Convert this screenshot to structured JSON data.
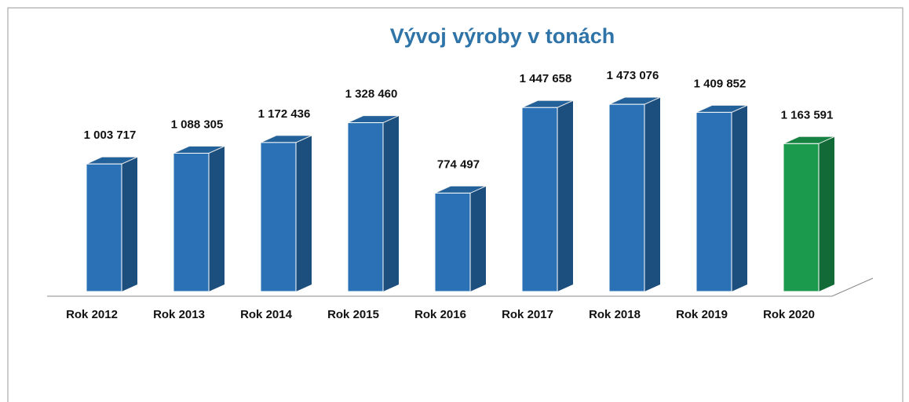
{
  "chart_data": {
    "type": "bar3d",
    "title": "Vývoj výroby v tonách",
    "categories": [
      "Rok 2012",
      "Rok 2013",
      "Rok 2014",
      "Rok 2015",
      "Rok 2016",
      "Rok 2017",
      "Rok 2018",
      "Rok 2019",
      "Rok 2020"
    ],
    "values": [
      1003717,
      1088305,
      1172436,
      1328460,
      774497,
      1447658,
      1473076,
      1409852,
      1163591
    ],
    "value_labels": [
      "1 003 717",
      "1 088 305",
      "1 172 436",
      "1 328 460",
      "774 497",
      "1 447 658",
      "1 473 076",
      "1 409 852",
      "1 163 591"
    ],
    "colors": [
      "#2a72b5",
      "#2a72b5",
      "#2a72b5",
      "#2a72b5",
      "#2a72b5",
      "#2a72b5",
      "#2a72b5",
      "#2a72b5",
      "#1b9a4e"
    ]
  }
}
